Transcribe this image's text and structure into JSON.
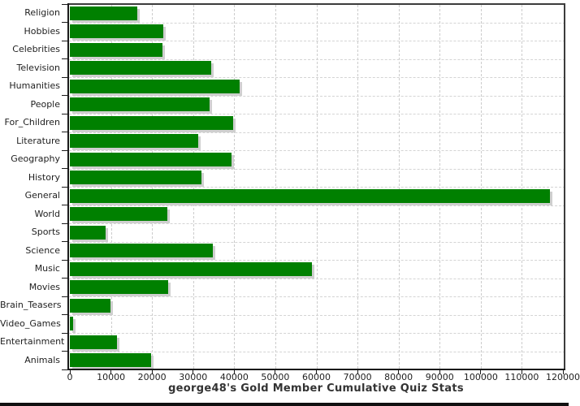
{
  "chart_data": {
    "type": "bar",
    "orientation": "horizontal",
    "title": "george48's Gold Member Cumulative Quiz Stats",
    "categories": [
      "Religion",
      "Hobbies",
      "Celebrities",
      "Television",
      "Humanities",
      "People",
      "For_Children",
      "Literature",
      "Geography",
      "History",
      "General",
      "World",
      "Sports",
      "Science",
      "Music",
      "Movies",
      "Brain_Teasers",
      "Video_Games",
      "Entertainment",
      "Animals"
    ],
    "values": [
      16500,
      22700,
      22600,
      34300,
      41400,
      34000,
      39700,
      31200,
      39300,
      32000,
      116800,
      23700,
      8600,
      34700,
      59000,
      24000,
      9800,
      700,
      11500,
      19800
    ],
    "xlabel": "",
    "ylabel": "",
    "xlim": [
      0,
      120000
    ],
    "x_ticks": [
      0,
      10000,
      20000,
      30000,
      40000,
      50000,
      60000,
      70000,
      80000,
      90000,
      100000,
      110000,
      120000
    ],
    "x_tick_labels": [
      "0",
      "10000",
      "20000",
      "30000",
      "40000",
      "50000",
      "60000",
      "70000",
      "80000",
      "90000",
      "100000",
      "110000",
      "120000"
    ],
    "grid": true,
    "legend": "none",
    "bar_color": "#008000",
    "bar_shadow_color": "#cfcfcf",
    "grid_color": "#cccccc",
    "axis_color": "#1a1a1a",
    "text_color": "#1f1f1f"
  }
}
